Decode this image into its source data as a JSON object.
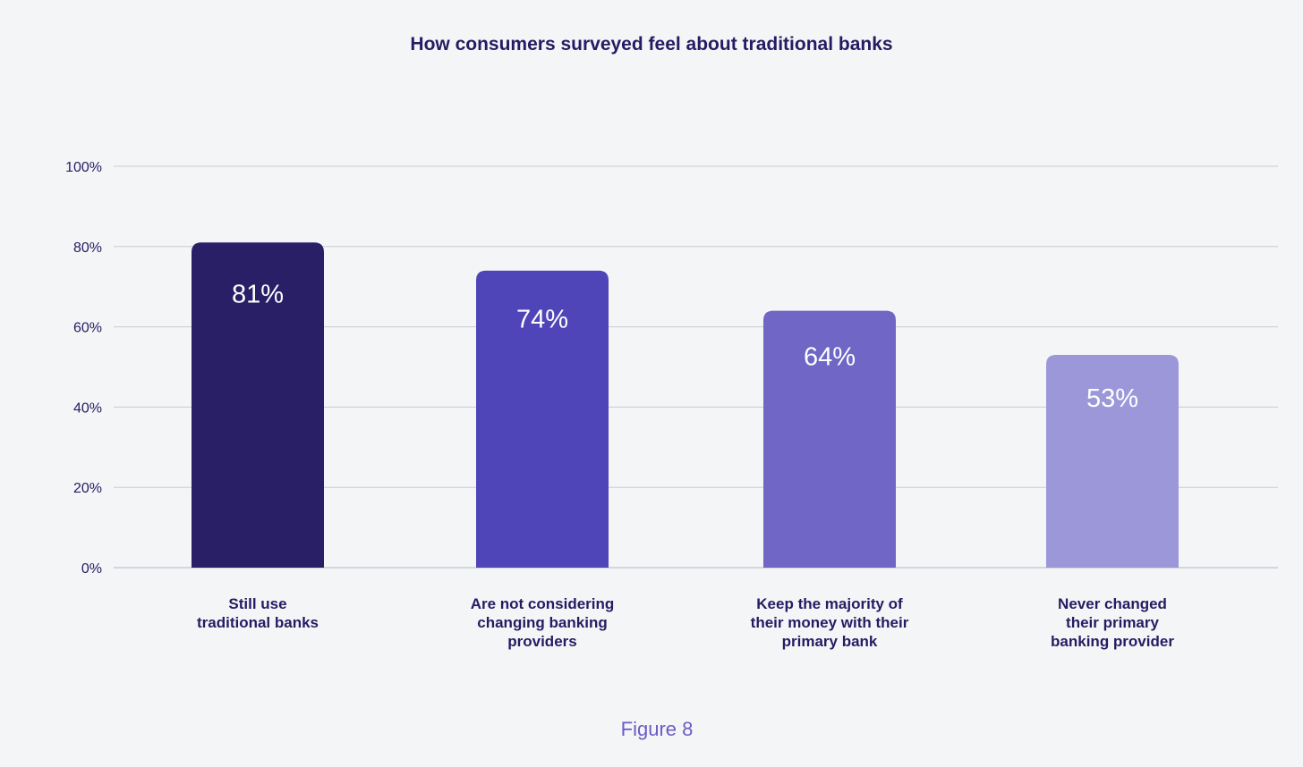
{
  "caption": "Figure 8",
  "chart_data": {
    "type": "bar",
    "title": "How consumers surveyed feel about traditional banks",
    "xlabel": "",
    "ylabel": "",
    "ylim": [
      0,
      100
    ],
    "yticks": [
      "0%",
      "20%",
      "40%",
      "60%",
      "80%",
      "100%"
    ],
    "grid": true,
    "categories": [
      [
        "Still use",
        "traditional banks"
      ],
      [
        "Are not considering",
        "changing banking",
        "providers"
      ],
      [
        "Keep the majority of",
        "their money with their",
        "primary bank"
      ],
      [
        "Never changed",
        "their primary",
        "banking provider"
      ]
    ],
    "values": [
      81,
      74,
      64,
      53
    ],
    "data_labels": [
      "81%",
      "74%",
      "64%",
      "53%"
    ],
    "colors": [
      "#291f66",
      "#5045b8",
      "#6f66c6",
      "#9c97d9"
    ]
  }
}
